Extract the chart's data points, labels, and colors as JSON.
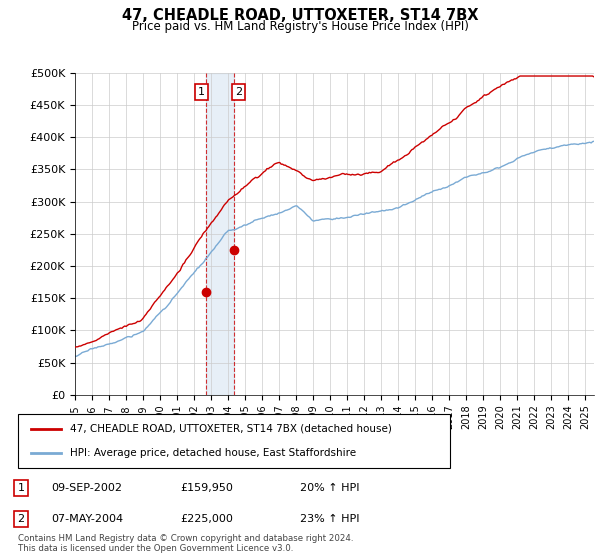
{
  "title": "47, CHEADLE ROAD, UTTOXETER, ST14 7BX",
  "subtitle": "Price paid vs. HM Land Registry's House Price Index (HPI)",
  "ylabel_ticks": [
    "£0",
    "£50K",
    "£100K",
    "£150K",
    "£200K",
    "£250K",
    "£300K",
    "£350K",
    "£400K",
    "£450K",
    "£500K"
  ],
  "ytick_values": [
    0,
    50000,
    100000,
    150000,
    200000,
    250000,
    300000,
    350000,
    400000,
    450000,
    500000
  ],
  "xlim_start": 1995.0,
  "xlim_end": 2025.5,
  "ylim_min": 0,
  "ylim_max": 500000,
  "transaction1": {
    "date": 2002.69,
    "price": 159950,
    "label": "1"
  },
  "transaction2": {
    "date": 2004.35,
    "price": 225000,
    "label": "2"
  },
  "legend_line1": "47, CHEADLE ROAD, UTTOXETER, ST14 7BX (detached house)",
  "legend_line2": "HPI: Average price, detached house, East Staffordshire",
  "table_rows": [
    {
      "num": "1",
      "date": "09-SEP-2002",
      "price": "£159,950",
      "change": "20% ↑ HPI"
    },
    {
      "num": "2",
      "date": "07-MAY-2004",
      "price": "£225,000",
      "change": "23% ↑ HPI"
    }
  ],
  "footnote": "Contains HM Land Registry data © Crown copyright and database right 2024.\nThis data is licensed under the Open Government Licence v3.0.",
  "hpi_color": "#7aaad4",
  "price_color": "#cc0000",
  "background_color": "#ffffff",
  "grid_color": "#cccccc"
}
